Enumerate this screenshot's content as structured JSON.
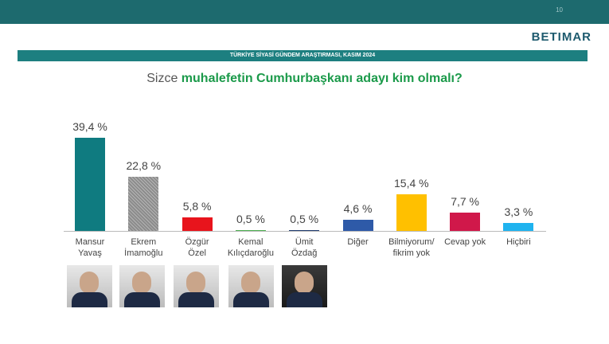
{
  "page_number": "10",
  "logo": "BETIMAR",
  "banner": "TÜRKİYE SİYASİ GÜNDEM ARAŞTIRMASI, KASIM 2024",
  "chart_data": {
    "type": "bar",
    "title": {
      "lead": "Sizce",
      "emphasis": "muhalefetin Cumhurbaşkanı adayı kim olmalı?"
    },
    "categories": [
      "Mansur\nYavaş",
      "Ekrem\nİmamoğlu",
      "Özgür\nÖzel",
      "Kemal\nKılıçdaroğlu",
      "Ümit\nÖzdağ",
      "Diğer",
      "Bilmiyorum/\nfikrim yok",
      "Cevap yok",
      "Hiçbiri"
    ],
    "values": [
      39.4,
      22.8,
      5.8,
      0.5,
      0.5,
      4.6,
      15.4,
      7.7,
      3.3
    ],
    "value_labels": [
      "39,4 %",
      "22,8 %",
      "5,8 %",
      "0,5 %",
      "0,5 %",
      "4,6 %",
      "15,4 %",
      "7,7 %",
      "3,3 %"
    ],
    "colors": [
      "#0f7b80",
      "#8c8c8c",
      "#e8141c",
      "#4caf50",
      "#1f3b6e",
      "#2e5aa8",
      "#ffc000",
      "#d0184a",
      "#1fb3ef"
    ]
  }
}
